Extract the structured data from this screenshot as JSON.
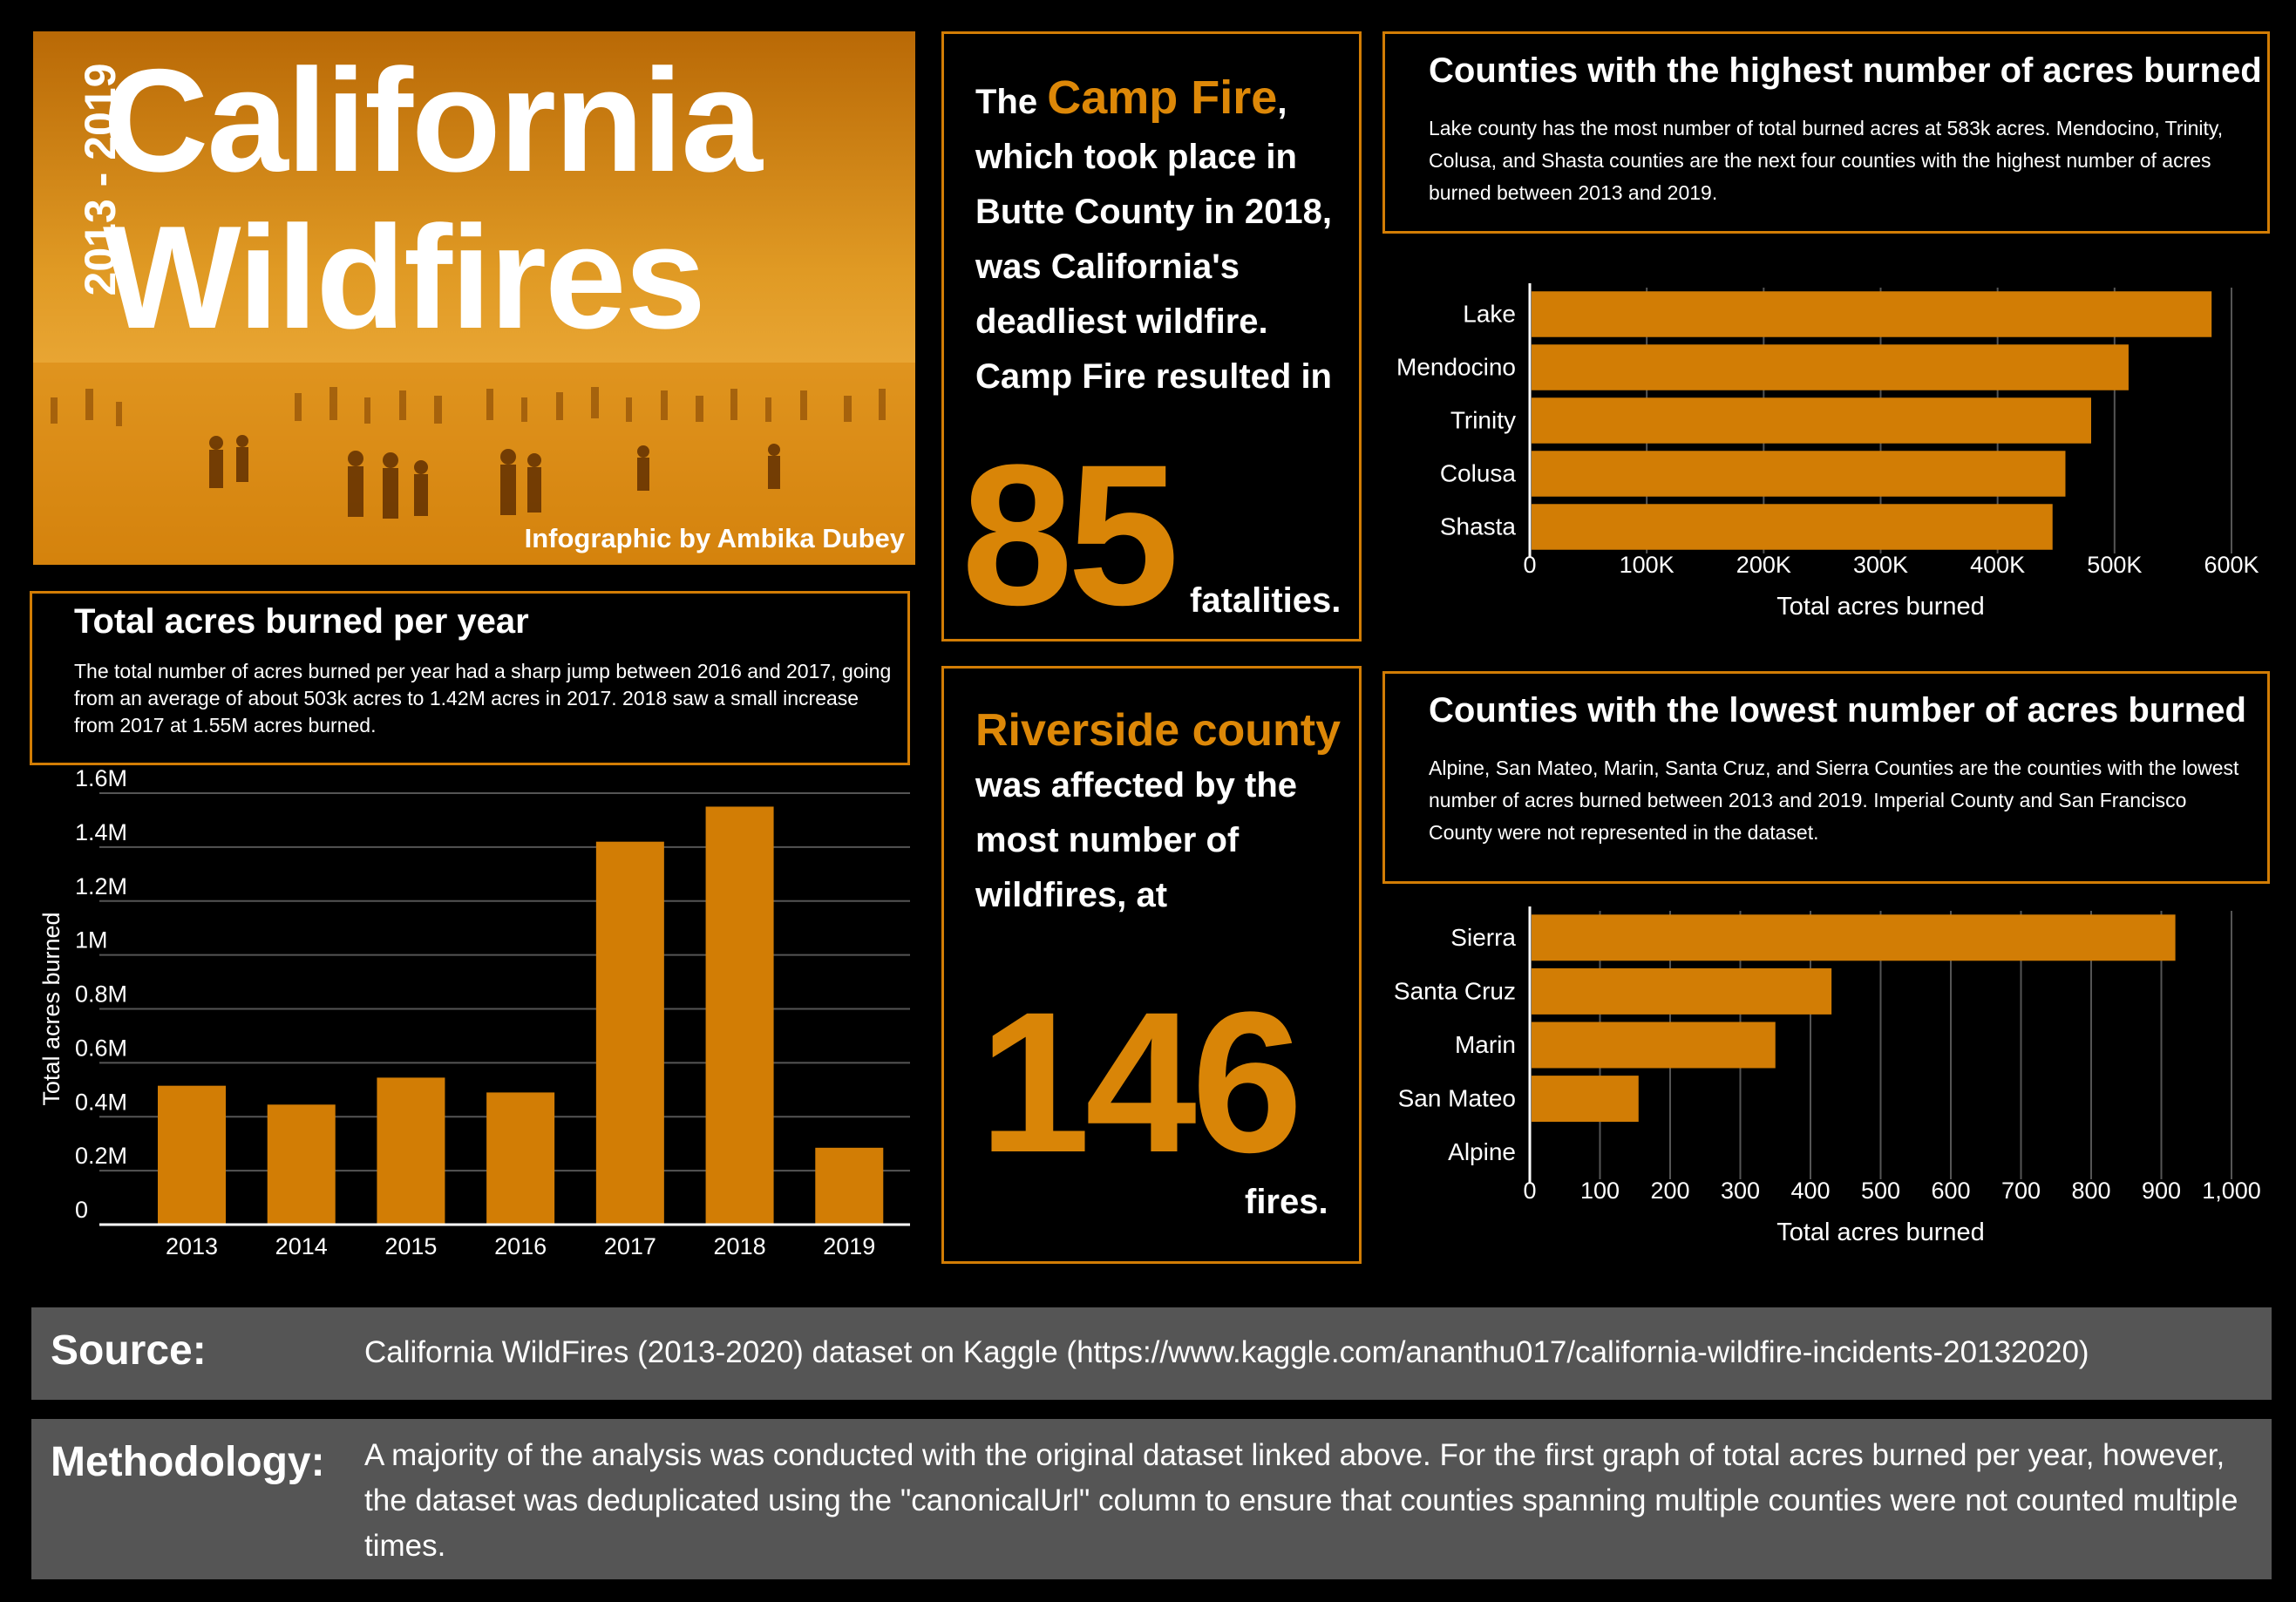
{
  "hero": {
    "years": "2013 - 2019",
    "title_line1": "California",
    "title_line2": "Wildfires",
    "credit": "Infographic by Ambika Dubey"
  },
  "camp_fire": {
    "prefix": "The ",
    "name": "Camp Fire",
    "comma": ",",
    "body": "which took place in Butte County in 2018, was California's deadliest wildfire. Camp Fire resulted in",
    "number": "85",
    "suffix": "fatalities."
  },
  "riverside": {
    "name": "Riverside county",
    "body": "was affected by the most number of wildfires, at",
    "number": "146",
    "suffix": "fires."
  },
  "per_year_panel": {
    "title": "Total acres burned per year",
    "description": "The total number of acres burned per year had a sharp jump between 2016 and 2017, going from an average of about 503k acres to 1.42M acres in 2017. 2018 saw a small increase from 2017 at 1.55M acres burned."
  },
  "highest_panel": {
    "title": "Counties with the highest number of acres burned",
    "description": "Lake county has the most number of total burned acres at 583k acres. Mendocino, Trinity, Colusa, and Shasta counties are the next four counties with the highest number of acres burned between 2013 and 2019."
  },
  "lowest_panel": {
    "title": "Counties with the lowest number of acres burned",
    "description": "Alpine, San Mateo, Marin, Santa Cruz, and Sierra Counties are the counties with the lowest number of acres burned between 2013 and 2019. Imperial County and San Francisco County were not represented in the dataset."
  },
  "source": {
    "label": "Source:",
    "text": "California WildFires (2013-2020) dataset on Kaggle (https://www.kaggle.com/ananthu017/california-wildfire-incidents-20132020)"
  },
  "methodology": {
    "label": "Methodology:",
    "text": "A majority of the analysis was conducted with the original dataset linked above. For the first graph of total acres burned per year, however, the dataset was deduplicated using the \"canonicalUrl\" column to ensure that counties spanning multiple counties were not counted multiple times."
  },
  "colors": {
    "accent": "#d27d05",
    "bar": "#d27d05",
    "band": "#555555",
    "background": "#000000"
  },
  "chart_data": [
    {
      "type": "bar",
      "orientation": "vertical",
      "categories": [
        "2013",
        "2014",
        "2015",
        "2016",
        "2017",
        "2018",
        "2019"
      ],
      "values": [
        515000,
        445000,
        545000,
        490000,
        1420000,
        1550000,
        285000
      ],
      "ylabel": "Total acres burned",
      "ylim": [
        0,
        1600000
      ],
      "yticks": [
        0,
        200000,
        400000,
        600000,
        800000,
        1000000,
        1200000,
        1400000,
        1600000
      ],
      "ytick_labels": [
        "0",
        "0.2M",
        "0.4M",
        "0.6M",
        "0.8M",
        "1M",
        "1.2M",
        "1.4M",
        "1.6M"
      ],
      "grid": true
    },
    {
      "type": "bar",
      "orientation": "horizontal",
      "categories": [
        "Lake",
        "Mendocino",
        "Trinity",
        "Colusa",
        "Shasta"
      ],
      "values": [
        583000,
        512000,
        480000,
        458000,
        447000
      ],
      "xlabel": "Total acres burned",
      "xlim": [
        0,
        600000
      ],
      "xticks": [
        0,
        100000,
        200000,
        300000,
        400000,
        500000,
        600000
      ],
      "xtick_labels": [
        "0",
        "100K",
        "200K",
        "300K",
        "400K",
        "500K",
        "600K"
      ],
      "grid": true
    },
    {
      "type": "bar",
      "orientation": "horizontal",
      "categories": [
        "Sierra",
        "Santa Cruz",
        "Marin",
        "San Mateo",
        "Alpine"
      ],
      "values": [
        920,
        430,
        350,
        155,
        0
      ],
      "xlabel": "Total acres burned",
      "xlim": [
        0,
        1000
      ],
      "xticks": [
        0,
        100,
        200,
        300,
        400,
        500,
        600,
        700,
        800,
        900,
        1000
      ],
      "xtick_labels": [
        "0",
        "100",
        "200",
        "300",
        "400",
        "500",
        "600",
        "700",
        "800",
        "900",
        "1,000"
      ],
      "grid": true
    }
  ]
}
